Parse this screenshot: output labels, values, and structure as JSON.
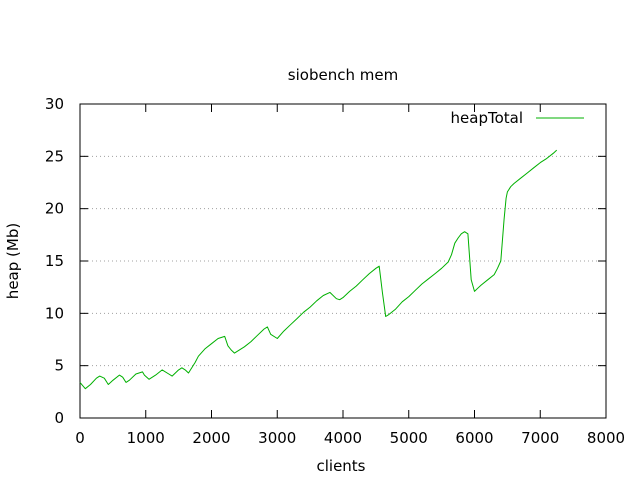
{
  "chart_data": {
    "type": "line",
    "title": "siobench mem",
    "xlabel": "clients",
    "ylabel": "heap (Mb)",
    "xlim": [
      0,
      8000
    ],
    "ylim": [
      0,
      30
    ],
    "xticks": [
      0,
      1000,
      2000,
      3000,
      4000,
      5000,
      6000,
      7000,
      8000
    ],
    "yticks": [
      0,
      5,
      10,
      15,
      20,
      25,
      30
    ],
    "grid": "horizontal-dotted",
    "legend": "top-right",
    "colors": {
      "series": "#00b000",
      "grid": "#a0a0a0",
      "axis": "#000000"
    },
    "series": [
      {
        "name": "heapTotal",
        "x": [
          0,
          80,
          160,
          250,
          300,
          370,
          430,
          500,
          600,
          650,
          700,
          750,
          850,
          950,
          980,
          1050,
          1150,
          1250,
          1350,
          1400,
          1500,
          1550,
          1600,
          1650,
          1750,
          1800,
          1900,
          2000,
          2100,
          2200,
          2250,
          2300,
          2350,
          2500,
          2600,
          2700,
          2800,
          2850,
          2900,
          3000,
          3100,
          3200,
          3300,
          3400,
          3500,
          3600,
          3700,
          3800,
          3900,
          3950,
          4000,
          4100,
          4200,
          4300,
          4400,
          4500,
          4550,
          4600,
          4650,
          4700,
          4800,
          4900,
          5000,
          5100,
          5200,
          5300,
          5400,
          5500,
          5600,
          5650,
          5700,
          5750,
          5800,
          5850,
          5900,
          5950,
          6000,
          6050,
          6100,
          6200,
          6300,
          6350,
          6400,
          6450,
          6480,
          6500,
          6550,
          6600,
          6700,
          6800,
          6900,
          7000,
          7100,
          7200,
          7250
        ],
        "values": [
          3.4,
          2.8,
          3.2,
          3.8,
          4.0,
          3.8,
          3.2,
          3.6,
          4.1,
          3.9,
          3.4,
          3.6,
          4.2,
          4.4,
          4.1,
          3.7,
          4.1,
          4.6,
          4.2,
          4.0,
          4.6,
          4.8,
          4.6,
          4.3,
          5.3,
          5.9,
          6.6,
          7.1,
          7.6,
          7.8,
          6.9,
          6.5,
          6.2,
          6.8,
          7.3,
          7.9,
          8.5,
          8.7,
          8.0,
          7.6,
          8.3,
          8.9,
          9.5,
          10.1,
          10.6,
          11.2,
          11.7,
          12.0,
          11.4,
          11.3,
          11.5,
          12.1,
          12.6,
          13.2,
          13.8,
          14.3,
          14.5,
          12.0,
          9.7,
          9.9,
          10.4,
          11.1,
          11.6,
          12.2,
          12.8,
          13.3,
          13.8,
          14.3,
          14.9,
          15.6,
          16.7,
          17.2,
          17.6,
          17.8,
          17.6,
          13.2,
          12.1,
          12.4,
          12.7,
          13.2,
          13.7,
          14.3,
          15.0,
          19.0,
          21.0,
          21.6,
          22.1,
          22.4,
          22.9,
          23.4,
          23.9,
          24.4,
          24.8,
          25.3,
          25.6
        ]
      }
    ]
  }
}
